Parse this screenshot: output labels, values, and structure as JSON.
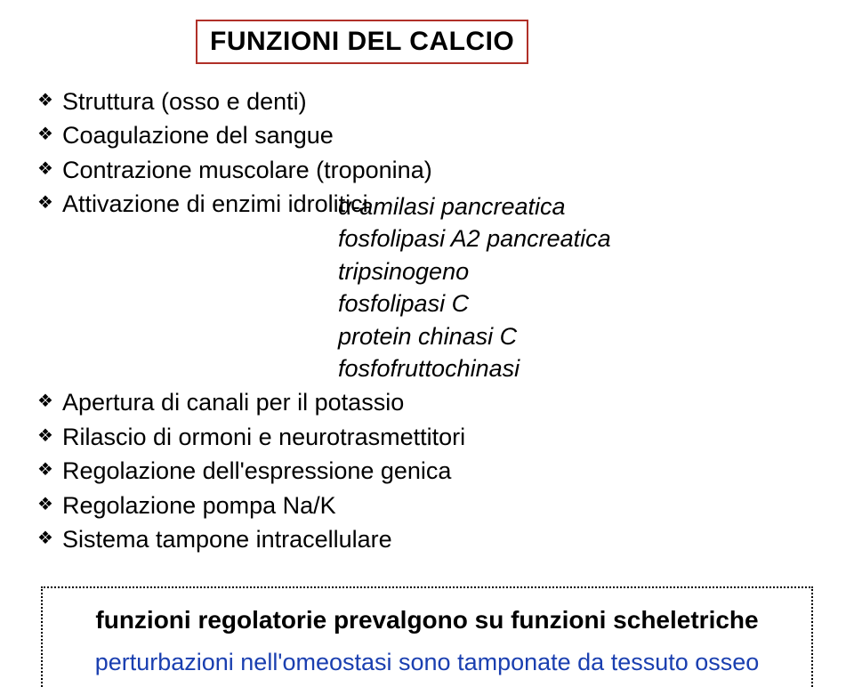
{
  "colors": {
    "title_border": "#b03028",
    "callout_border": "#000000",
    "callout_line2_color": "#1a3fb0",
    "text_color": "#000000"
  },
  "title": "FUNZIONI DEL CALCIO",
  "bullets": {
    "b1": "Struttura (osso e denti)",
    "b2": "Coagulazione del sangue",
    "b3": "Contrazione muscolare (troponina)",
    "b4": "Attivazione di enzimi idrolitici",
    "b5": "Apertura di canali per il potassio",
    "b6": "Rilascio di ormoni e neurotrasmettitori",
    "b7": "Regolazione dell'espressione genica",
    "b8": "Regolazione pompa Na/K",
    "b9": "Sistema tampone intracellulare"
  },
  "enzymes": {
    "e1_prefix": "α",
    "e1_rest": "-amilasi pancreatica",
    "e2": "fosfolipasi A2 pancreatica",
    "e3": "tripsinogeno",
    "e4": "fosfolipasi C",
    "e5": "protein chinasi C",
    "e6": "fosfofruttochinasi"
  },
  "callout": {
    "line1": "funzioni regolatorie prevalgono su funzioni scheletriche",
    "line2": "perturbazioni nell'omeostasi sono tamponate da tessuto osseo"
  },
  "marker_glyph": "❖"
}
